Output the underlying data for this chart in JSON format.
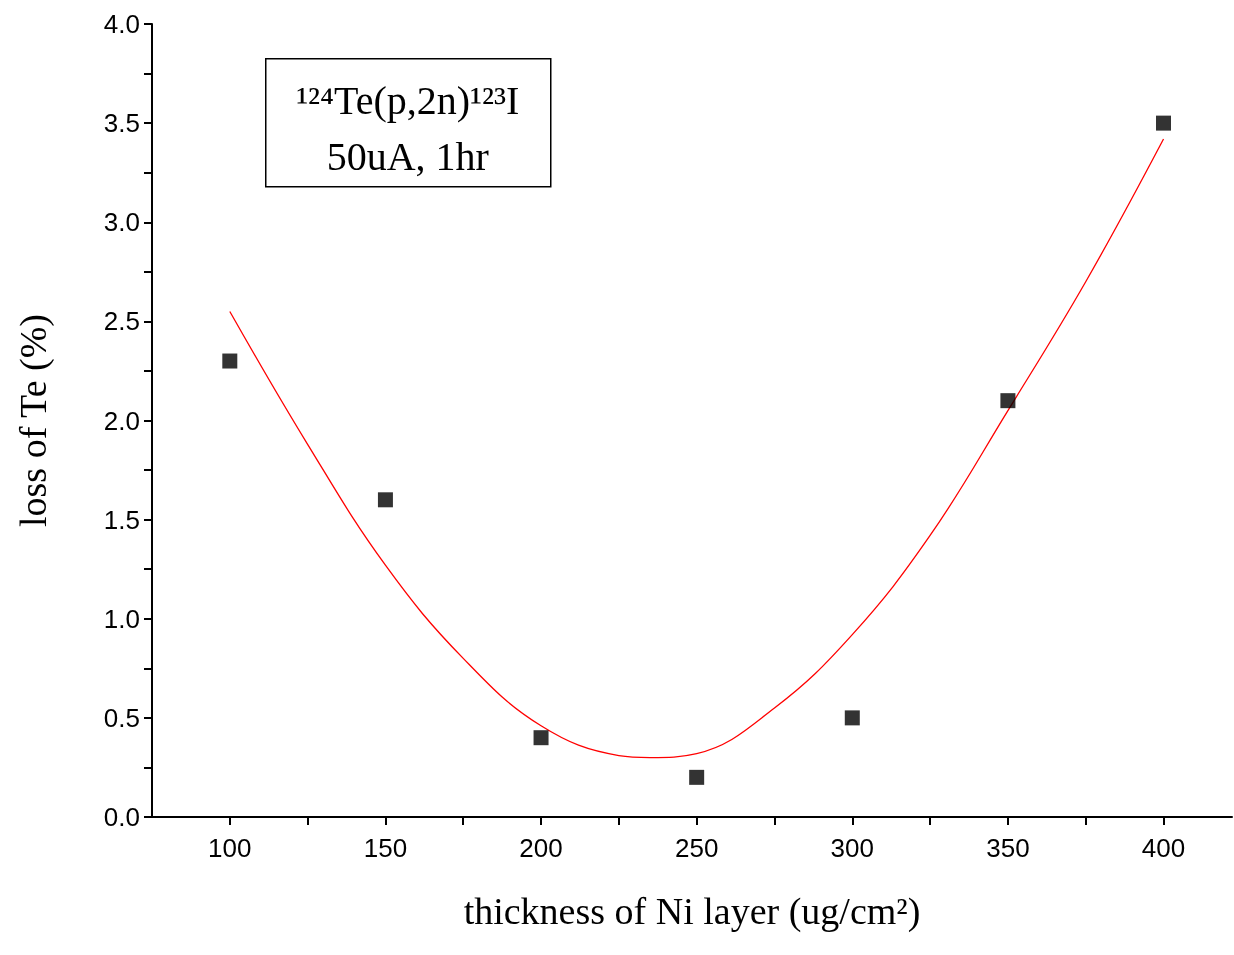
{
  "chart_data": {
    "type": "scatter",
    "xlabel": "thickness of Ni layer (ug/cm²)",
    "ylabel": "loss of Te (%)",
    "annotations": [
      "¹²⁴Te(p,2n)¹²³I",
      "50uA, 1hr"
    ],
    "x": [
      100,
      150,
      200,
      250,
      300,
      350,
      400
    ],
    "series": [
      {
        "color": "#000000",
        "marker": "square",
        "values": [
          2.3,
          1.6,
          0.4,
          0.2,
          0.5,
          2.1,
          3.5
        ]
      },
      {
        "type": "line",
        "color": "#ff0000",
        "marker": "none",
        "x": [
          100,
          125,
          150,
          175,
          200,
          225,
          235,
          250,
          275,
          300,
          325,
          350,
          375,
          400
        ],
        "values": [
          2.55,
          1.88,
          1.27,
          0.8,
          0.46,
          0.31,
          0.3,
          0.32,
          0.55,
          0.92,
          1.42,
          2.05,
          2.7,
          3.42
        ]
      }
    ],
    "xlim": [
      75,
      422
    ],
    "xticks": [
      100,
      {
        "value": 125,
        "label": null
      },
      150,
      {
        "value": 175,
        "label": null
      },
      200,
      {
        "value": 225,
        "label": null
      },
      250,
      {
        "value": 275,
        "label": null
      },
      300,
      {
        "value": 325,
        "label": null
      },
      350,
      {
        "value": 375,
        "label": null
      },
      400
    ],
    "ylim": [
      0,
      4
    ],
    "yticks": [
      {
        "value": 0,
        "label": "0.0"
      },
      {
        "value": 0.25,
        "label": null
      },
      {
        "value": 0.5,
        "label": "0.5"
      },
      {
        "value": 0.75,
        "label": null
      },
      {
        "value": 1,
        "label": "1.0"
      },
      {
        "value": 1.25,
        "label": null
      },
      {
        "value": 1.5,
        "label": "1.5"
      },
      {
        "value": 1.75,
        "label": null
      },
      {
        "value": 2,
        "label": "2.0"
      },
      {
        "value": 2.25,
        "label": null
      },
      {
        "value": 2.5,
        "label": "2.5"
      },
      {
        "value": 2.75,
        "label": null
      },
      {
        "value": 3,
        "label": "3.0"
      },
      {
        "value": 3.25,
        "label": null
      },
      {
        "value": 3.5,
        "label": "3.5"
      },
      {
        "value": 3.75,
        "label": null
      },
      {
        "value": 4,
        "label": "4.0"
      }
    ],
    "grid": false
  }
}
